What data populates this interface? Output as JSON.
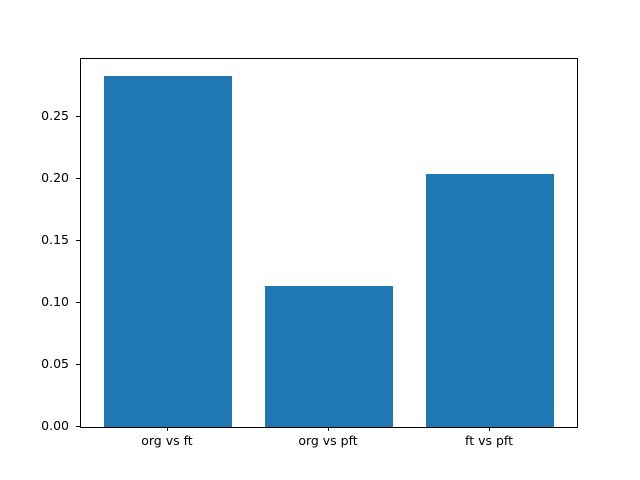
{
  "chart_data": {
    "type": "bar",
    "title": "",
    "xlabel": "",
    "ylabel": "",
    "categories": [
      "org vs ft",
      "org vs pft",
      "ft vs pft"
    ],
    "values": [
      0.283,
      0.114,
      0.204
    ],
    "ytick_labels": [
      "0.00",
      "0.05",
      "0.10",
      "0.15",
      "0.20",
      "0.25"
    ],
    "ylim": [
      0,
      0.297
    ],
    "bar_color": "#1f77b4",
    "background_color": "#ffffff",
    "spine_color": "#000000",
    "grid": "off",
    "legend": "none",
    "bar_width_fraction": 0.8,
    "x_axis_units_span": 3.08
  }
}
